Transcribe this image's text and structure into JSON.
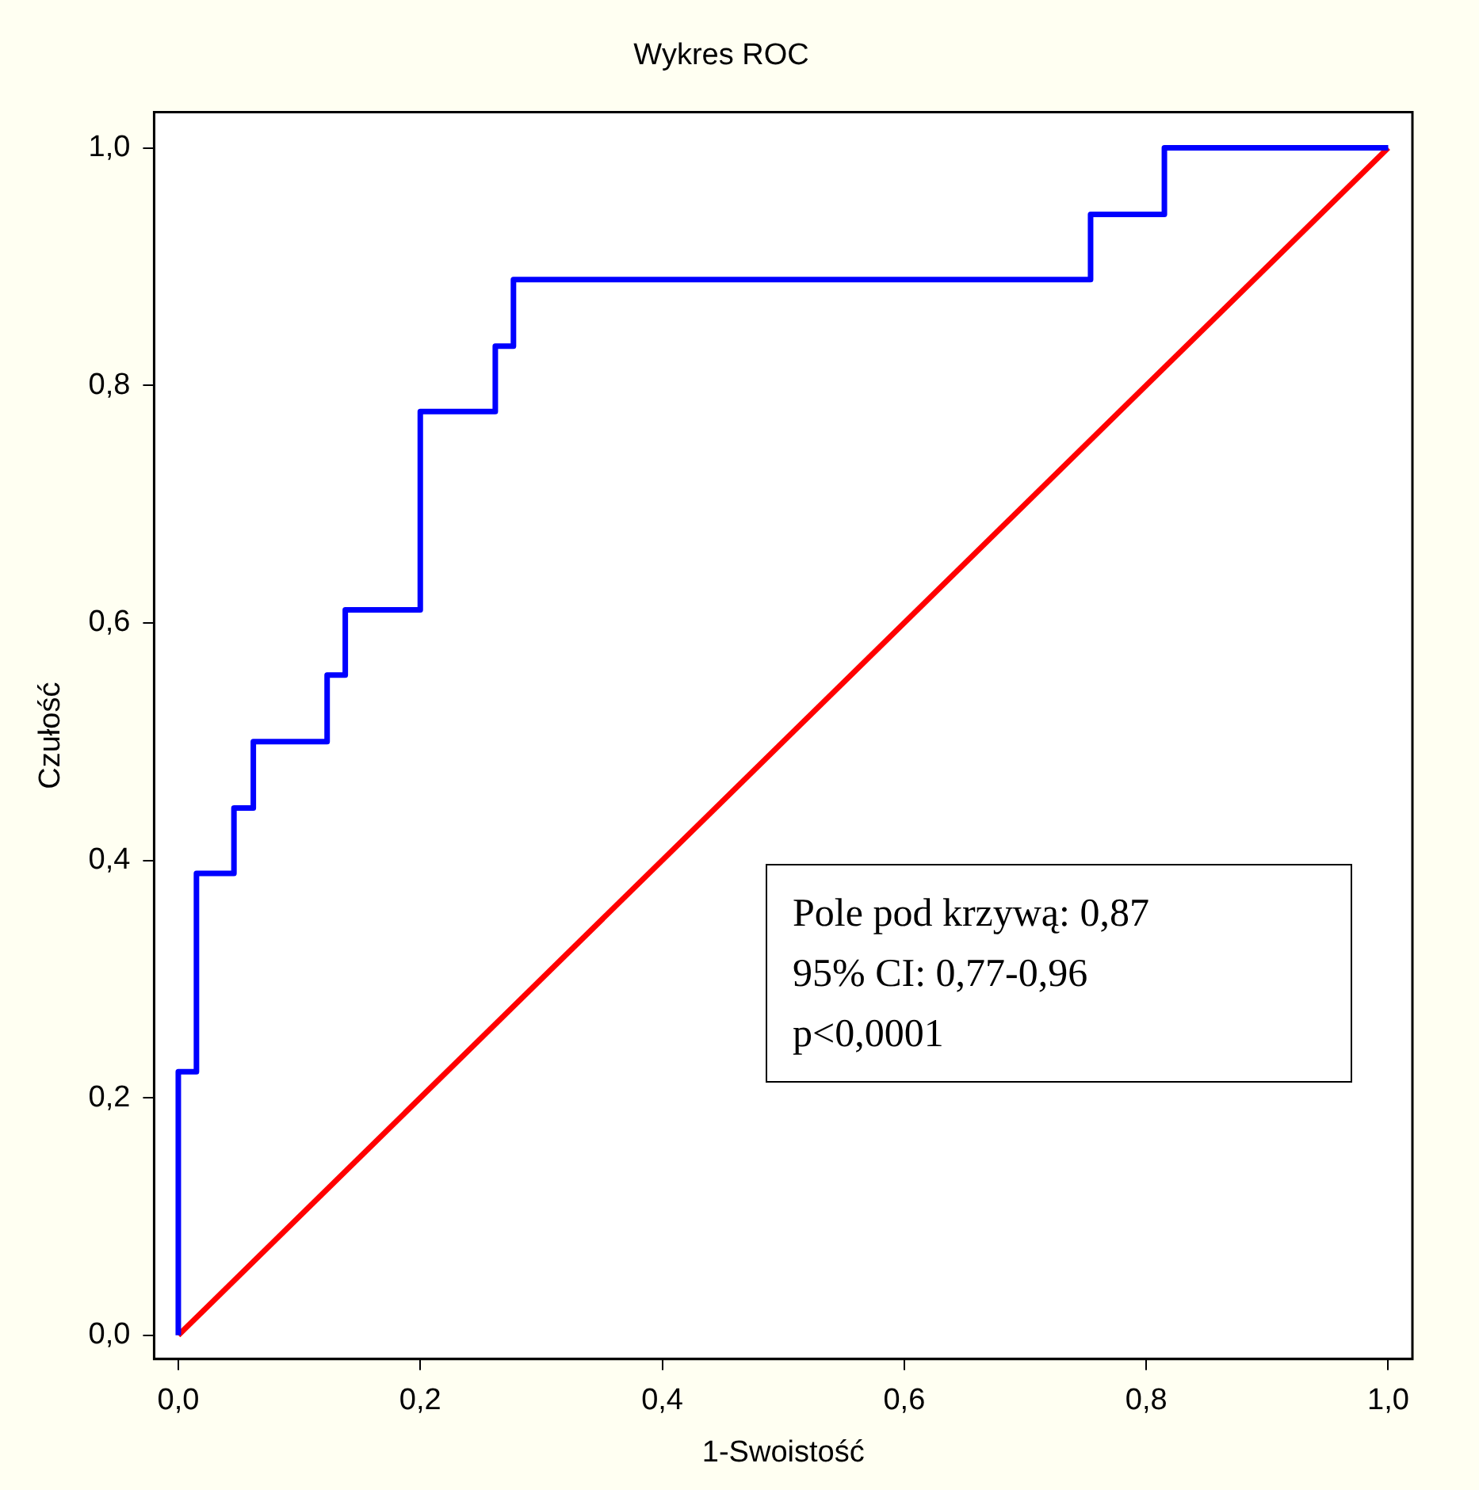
{
  "chart_data": {
    "type": "line",
    "title": "Wykres ROC",
    "xlabel": "1-Swoistość",
    "ylabel": "Czułość",
    "xlim": [
      -0.02,
      1.02
    ],
    "ylim": [
      -0.02,
      1.03
    ],
    "xticks": [
      {
        "value": 0,
        "label": "0,0"
      },
      {
        "value": 0.2,
        "label": "0,2"
      },
      {
        "value": 0.4,
        "label": "0,4"
      },
      {
        "value": 0.6,
        "label": "0,6"
      },
      {
        "value": 0.8,
        "label": "0,8"
      },
      {
        "value": 1,
        "label": "1,0"
      }
    ],
    "yticks": [
      {
        "value": 0,
        "label": "0,0"
      },
      {
        "value": 0.2,
        "label": "0,2"
      },
      {
        "value": 0.4,
        "label": "0,4"
      },
      {
        "value": 0.6,
        "label": "0,6"
      },
      {
        "value": 0.8,
        "label": "0,8"
      },
      {
        "value": 1,
        "label": "1,0"
      }
    ],
    "grid": false,
    "legend": false,
    "marker": "none",
    "line_style": "solid",
    "series": [
      {
        "type": "step",
        "color": "#0000ff",
        "x": [
          0,
          0,
          0.015,
          0.046,
          0.062,
          0.123,
          0.138,
          0.2,
          0.262,
          0.277,
          0.754,
          0.815,
          1
        ],
        "values": [
          0,
          0.222,
          0.389,
          0.444,
          0.5,
          0.556,
          0.611,
          0.778,
          0.833,
          0.889,
          0.944,
          1,
          1
        ]
      },
      {
        "color": "#ff0000",
        "x": [
          0,
          1
        ],
        "values": [
          0,
          1
        ]
      }
    ],
    "annotations": [
      "Pole pod krzywą: 0,87",
      "95% CI: 0,77-0,96",
      "p<0,0001"
    ]
  }
}
